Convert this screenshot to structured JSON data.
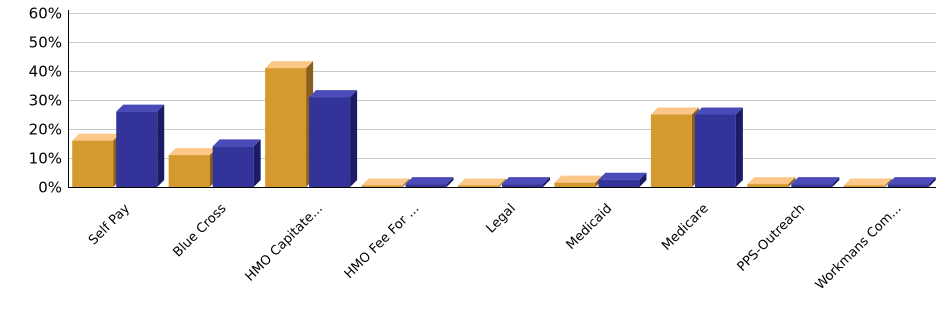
{
  "chart_data": {
    "type": "bar",
    "title": "",
    "xlabel": "",
    "ylabel": "",
    "categories": [
      "Self Pay",
      "Blue Cross",
      "HMO Capitate...",
      "HMO Fee For ...",
      "Legal",
      "Medicaid",
      "Medicare",
      "PPS-Outreach",
      "Workmans Com..."
    ],
    "series": [
      {
        "values": [
          16,
          11,
          41,
          0.3,
          0.3,
          1.5,
          25,
          1,
          0.3
        ],
        "color": "#d49a30",
        "top_color": "#fbc88a",
        "side_color": "#8a5e1c"
      },
      {
        "values": [
          26,
          14,
          31,
          1,
          1,
          2.5,
          25,
          1,
          1
        ],
        "color": "#333399",
        "top_color": "#4a4ab8",
        "side_color": "#1b1b66"
      }
    ],
    "ylim": [
      0,
      60
    ],
    "yticks": [
      "0%",
      "10%",
      "20%",
      "30%",
      "40%",
      "50%",
      "60%"
    ],
    "grid": true,
    "legend": "none"
  }
}
